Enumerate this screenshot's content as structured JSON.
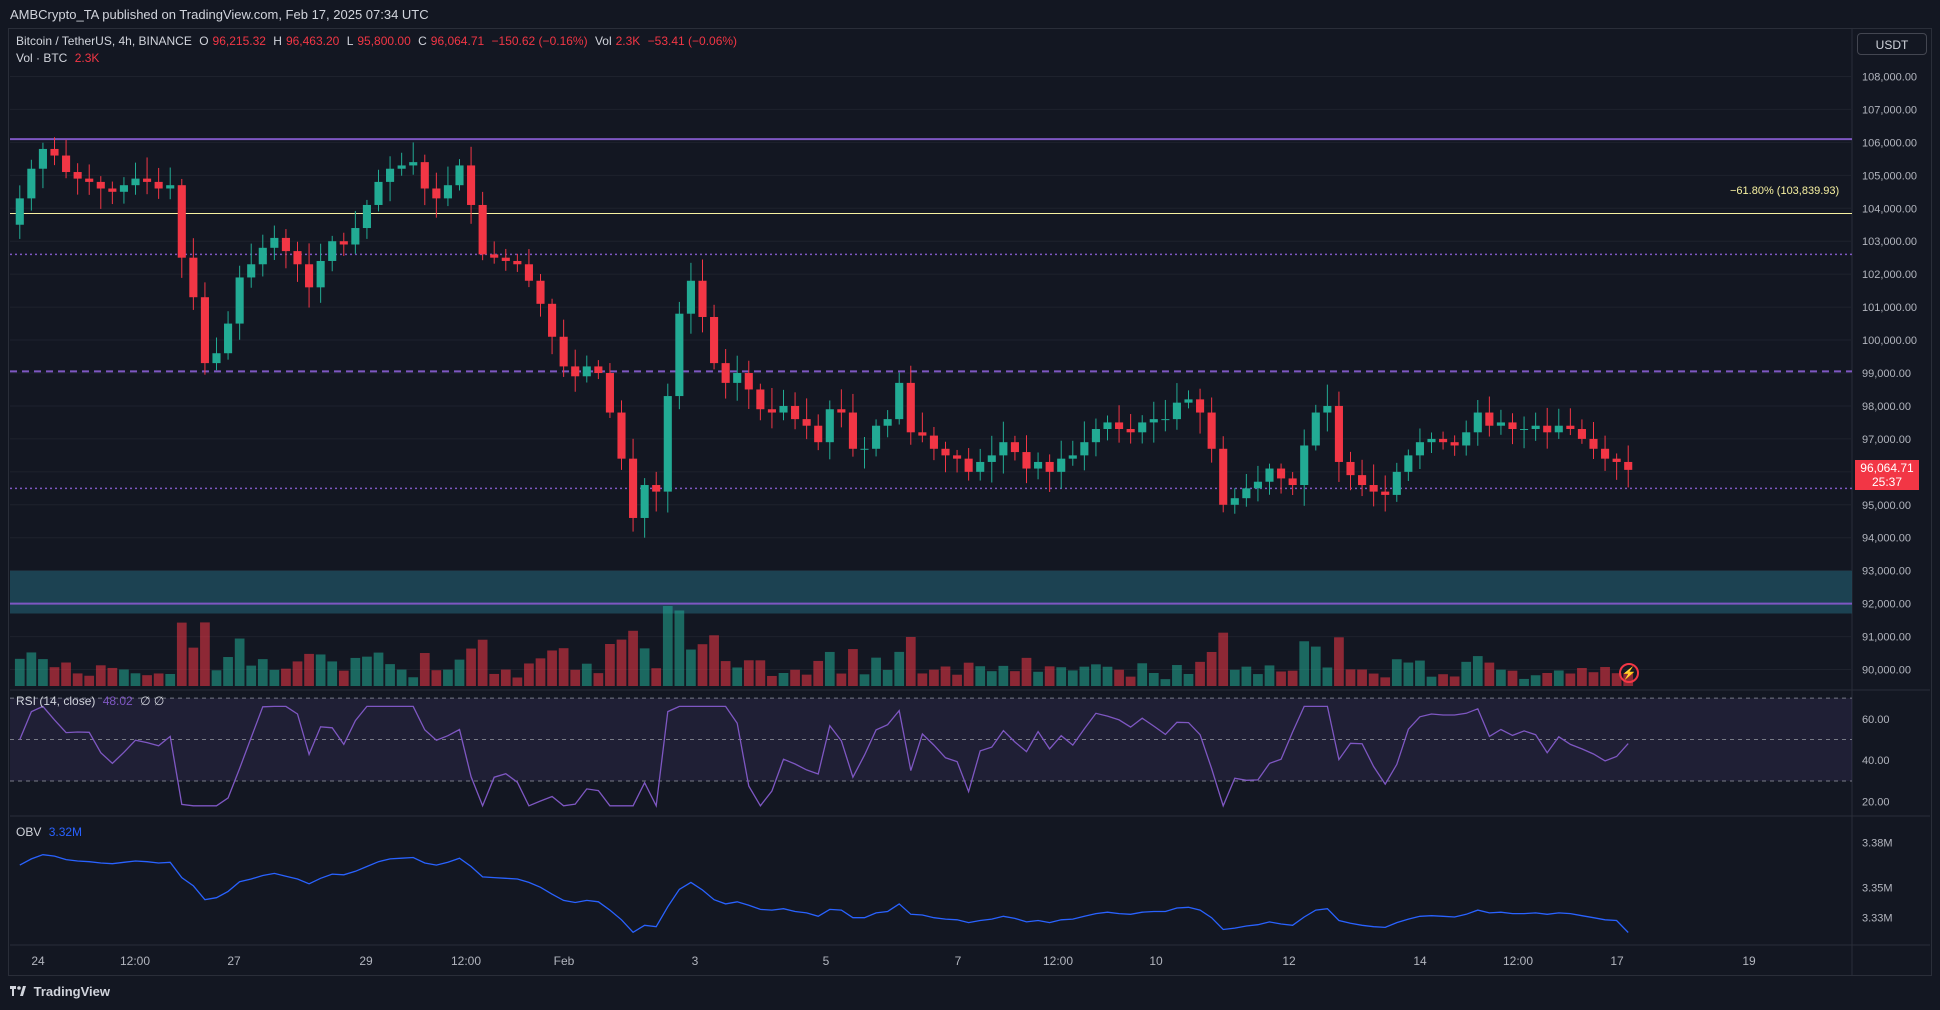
{
  "header": {
    "published": "AMBCrypto_TA published on TradingView.com, Feb 17, 2025 07:34 UTC"
  },
  "symbol": {
    "name": "Bitcoin / TetherUS, 4h, BINANCE",
    "open_k": "O",
    "open": "96,215.32",
    "high_k": "H",
    "high": "96,463.20",
    "low_k": "L",
    "low": "95,800.00",
    "close_k": "C",
    "close": "96,064.71",
    "change": "−150.62 (−0.16%)",
    "vol_k": "Vol",
    "vol": "2.3K",
    "vol_change": "−53.41 (−0.06%)"
  },
  "volume_legend": {
    "label": "Vol · BTC",
    "value": "2.3K"
  },
  "rsi_legend": {
    "label": "RSI (14, close)",
    "value": "48.02",
    "extra": "∅ ∅"
  },
  "obv_legend": {
    "label": "OBV",
    "value": "3.32M"
  },
  "unit": "USDT",
  "current_price": {
    "value": "96,064.71",
    "countdown": "25:37"
  },
  "fib_label": "−61.80% (103,839.93)",
  "price_axis": [
    "108,000.00",
    "107,000.00",
    "106,000.00",
    "105,000.00",
    "104,000.00",
    "103,000.00",
    "102,000.00",
    "101,000.00",
    "100,000.00",
    "99,000.00",
    "98,000.00",
    "97,000.00",
    "96,000.00",
    "95,000.00",
    "94,000.00",
    "93,000.00",
    "92,000.00",
    "91,000.00",
    "90,000.00"
  ],
  "rsi_axis": [
    "60.00",
    "40.00",
    "20.00"
  ],
  "obv_axis": [
    "3.38M",
    "3.35M",
    "3.33M"
  ],
  "time_axis": [
    "24",
    "12:00",
    "27",
    "29",
    "12:00",
    "Feb",
    "3",
    "5",
    "7",
    "12:00",
    "10",
    "12",
    "14",
    "12:00",
    "17",
    "19"
  ],
  "footer": {
    "brand": "TradingView"
  },
  "colors": {
    "up": "#22ab94",
    "down": "#f23645",
    "purple": "#7e57c2",
    "fib": "#f7f1a1",
    "obv": "#2962ff",
    "zone": "#1e4a5a"
  },
  "chart_data": {
    "type": "candlestick",
    "timeframe": "4h",
    "levels": {
      "resistance_high": 106100,
      "fib_61_8": 103839.93,
      "dotted_upper": 102600,
      "dashed_mid": 99050,
      "dotted_lower": 95500,
      "support_line": 92000,
      "demand_zone": [
        91700,
        93000
      ]
    },
    "price_ylim": [
      89500,
      108500
    ],
    "close_path": [
      104300,
      105200,
      105800,
      105600,
      105100,
      104900,
      104800,
      104600,
      104500,
      104700,
      104900,
      104800,
      104600,
      104700,
      102500,
      101300,
      99300,
      99600,
      100500,
      101900,
      102300,
      102800,
      103100,
      102700,
      102300,
      101600,
      102400,
      103000,
      102900,
      103400,
      104100,
      104800,
      105200,
      105300,
      105400,
      104600,
      104300,
      104700,
      105300,
      104100,
      102600,
      102500,
      102400,
      102300,
      101800,
      101100,
      100100,
      99200,
      98900,
      99200,
      99000,
      97800,
      96400,
      94600,
      95600,
      95400,
      98300,
      100800,
      101800,
      100700,
      99300,
      98700,
      99000,
      98500,
      97900,
      97800,
      98000,
      97600,
      97400,
      96900,
      97900,
      97800,
      96700,
      96700,
      97400,
      97600,
      98700,
      97200,
      97100,
      96700,
      96500,
      96400,
      96000,
      96300,
      96500,
      96900,
      96600,
      96100,
      96300,
      96000,
      96400,
      96500,
      96900,
      97300,
      97500,
      97300,
      97200,
      97500,
      97600,
      97600,
      98100,
      98200,
      97800,
      96700,
      95000,
      95200,
      95500,
      95700,
      96100,
      95800,
      95600,
      96800,
      97800,
      98000,
      96300,
      95900,
      95600,
      95400,
      95300,
      96000,
      96500,
      96900,
      97000,
      96900,
      96800,
      97200,
      97800,
      97400,
      97500,
      97300,
      97300,
      97400,
      97200,
      97400,
      97300,
      97000,
      96700,
      96400,
      96300,
      96060
    ],
    "rsi_ylim": [
      15,
      72
    ],
    "rsi_bands": [
      30,
      50,
      70
    ],
    "rsi_last": 48.02,
    "obv_ylim": [
      3.315,
      3.395
    ],
    "obv_last": 3.32
  }
}
